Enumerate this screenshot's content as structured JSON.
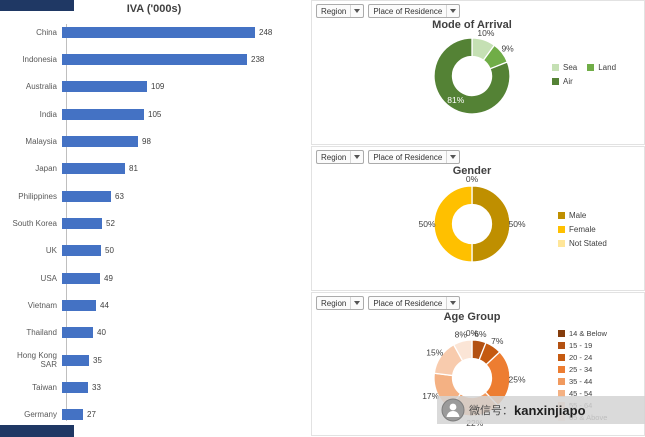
{
  "filters": {
    "region": "Region",
    "residence": "Place of Residence"
  },
  "watermark": {
    "prefix": "微信号：",
    "handle": "kanxinjiapo"
  },
  "colors": {
    "bar_blue": "#4472C4",
    "navy_strip": "#1F3864"
  },
  "chart_data": [
    {
      "type": "bar",
      "title": "IVA ('000s)",
      "orientation": "horizontal",
      "categories": [
        "China",
        "Indonesia",
        "Australia",
        "India",
        "Malaysia",
        "Japan",
        "Philippines",
        "South Korea",
        "UK",
        "USA",
        "Vietnam",
        "Thailand",
        "Hong Kong SAR",
        "Taiwan",
        "Germany"
      ],
      "values": [
        248,
        238,
        109,
        105,
        98,
        81,
        63,
        52,
        50,
        49,
        44,
        40,
        35,
        33,
        27
      ],
      "bar_color": "#4472C4",
      "xlim": [
        0,
        260
      ],
      "data_labels": true,
      "grid": false
    },
    {
      "type": "donut",
      "title": "Mode of Arrival",
      "legend_position": "right",
      "legend_cols": 2,
      "slices": [
        {
          "label": "Sea",
          "pct": 10,
          "color": "#C5E0B4"
        },
        {
          "label": "Land",
          "pct": 9,
          "color": "#70AD47"
        },
        {
          "label": "Air",
          "pct": 81,
          "color": "#548235",
          "label_inside": true,
          "label_color": "#FFFFFF"
        }
      ]
    },
    {
      "type": "donut",
      "title": "Gender",
      "legend_position": "right",
      "legend_cols": 1,
      "slices": [
        {
          "label": "Male",
          "pct": 50,
          "color": "#BF8F00"
        },
        {
          "label": "Female",
          "pct": 50,
          "color": "#FFC000"
        },
        {
          "label": "Not Stated",
          "pct": 0,
          "color": "#FFE699"
        }
      ]
    },
    {
      "type": "donut",
      "title": "Age Group",
      "legend_position": "right",
      "legend_cols": 1,
      "slices": [
        {
          "label": "14 & Below",
          "pct": 0,
          "color": "#843C0C"
        },
        {
          "label": "15 - 19",
          "pct": 6,
          "color": "#B35112"
        },
        {
          "label": "20 - 24",
          "pct": 7,
          "color": "#C55A11"
        },
        {
          "label": "25 - 34",
          "pct": 25,
          "color": "#ED7D31"
        },
        {
          "label": "35 - 44",
          "pct": 22,
          "color": "#F19A5E"
        },
        {
          "label": "45 - 54",
          "pct": 17,
          "color": "#F4B183"
        },
        {
          "label": "55 - 64",
          "pct": 15,
          "color": "#F8CBAD"
        },
        {
          "label": "65 & Above",
          "pct": 8,
          "color": "#FBE5D6"
        }
      ]
    }
  ]
}
